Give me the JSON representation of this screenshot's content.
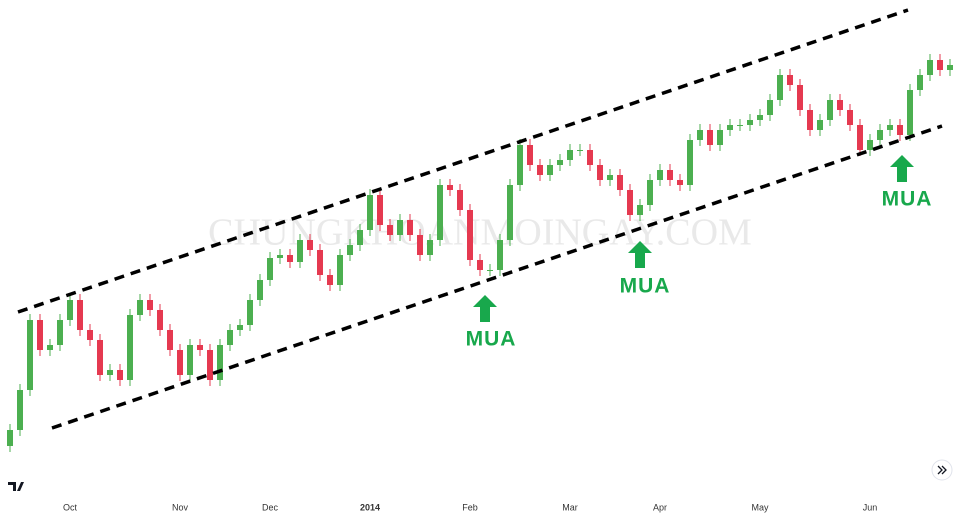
{
  "chart_data": {
    "type": "candlestick",
    "watermark": "CHUNGKHOANMOINGAY.COM",
    "annotations": [
      "MUA",
      "MUA",
      "MUA"
    ],
    "up_color": "#4caf50",
    "down_color": "#e53950",
    "ylim": [
      0,
      516
    ],
    "categories": [
      null,
      null,
      null,
      null,
      null,
      null,
      "Oct",
      null,
      null,
      null,
      null,
      null,
      null,
      null,
      null,
      null,
      null,
      "Nov",
      null,
      null,
      null,
      null,
      null,
      null,
      null,
      null,
      "Dec",
      null,
      null,
      null,
      null,
      null,
      null,
      null,
      null,
      null,
      "2014",
      null,
      null,
      null,
      null,
      null,
      null,
      null,
      null,
      null,
      "Feb",
      null,
      null,
      null,
      null,
      null,
      null,
      null,
      null,
      null,
      "Mar",
      null,
      null,
      null,
      null,
      null,
      null,
      null,
      null,
      "Apr",
      null,
      null,
      null,
      null,
      null,
      null,
      null,
      null,
      null,
      "May",
      null,
      null,
      null,
      null,
      null,
      null,
      null,
      null,
      null,
      null,
      "Jun",
      null,
      null,
      null,
      null,
      null,
      null,
      null,
      null
    ],
    "open": [
      70,
      86,
      126,
      196,
      166,
      171,
      196,
      216,
      186,
      176,
      141,
      146,
      136,
      201,
      216,
      206,
      186,
      166,
      141,
      171,
      166,
      136,
      171,
      186,
      191,
      216,
      236,
      258,
      261,
      254,
      276,
      266,
      241,
      231,
      261,
      271,
      286,
      321,
      291,
      281,
      296,
      281,
      261,
      276,
      331,
      326,
      306,
      256,
      246,
      246,
      276,
      331,
      371,
      351,
      341,
      351,
      356,
      366,
      366,
      351,
      336,
      341,
      326,
      301,
      311,
      336,
      346,
      336,
      331,
      376,
      386,
      371,
      386,
      391,
      391,
      396,
      401,
      416,
      441,
      431,
      406,
      386,
      396,
      416,
      406,
      391,
      366,
      376,
      386,
      391,
      381,
      426,
      441,
      456,
      446
    ],
    "close": [
      86,
      126,
      196,
      166,
      171,
      196,
      216,
      186,
      176,
      141,
      146,
      136,
      201,
      216,
      206,
      186,
      166,
      141,
      171,
      166,
      136,
      171,
      186,
      191,
      216,
      236,
      258,
      261,
      254,
      276,
      266,
      241,
      231,
      261,
      271,
      286,
      321,
      291,
      281,
      296,
      281,
      261,
      276,
      331,
      326,
      306,
      256,
      246,
      246,
      276,
      331,
      371,
      351,
      341,
      351,
      356,
      366,
      366,
      351,
      336,
      341,
      326,
      301,
      311,
      336,
      346,
      336,
      331,
      376,
      386,
      371,
      386,
      391,
      391,
      396,
      401,
      416,
      441,
      431,
      406,
      386,
      396,
      416,
      406,
      391,
      366,
      376,
      386,
      391,
      381,
      426,
      441,
      456,
      446,
      451
    ],
    "high": [
      92,
      132,
      202,
      202,
      177,
      202,
      222,
      222,
      192,
      182,
      152,
      152,
      207,
      222,
      222,
      212,
      192,
      172,
      177,
      177,
      172,
      177,
      192,
      197,
      222,
      242,
      264,
      267,
      267,
      282,
      282,
      272,
      247,
      267,
      277,
      292,
      327,
      327,
      297,
      302,
      302,
      287,
      282,
      337,
      337,
      332,
      312,
      262,
      252,
      282,
      337,
      377,
      377,
      357,
      357,
      362,
      372,
      372,
      372,
      357,
      347,
      347,
      332,
      317,
      342,
      352,
      352,
      342,
      382,
      392,
      392,
      392,
      397,
      397,
      402,
      407,
      422,
      447,
      447,
      437,
      412,
      402,
      422,
      422,
      412,
      397,
      382,
      392,
      397,
      397,
      432,
      447,
      462,
      462,
      457
    ],
    "low": [
      64,
      80,
      120,
      160,
      160,
      165,
      190,
      180,
      170,
      135,
      135,
      130,
      130,
      195,
      200,
      180,
      160,
      135,
      135,
      160,
      130,
      130,
      165,
      180,
      185,
      210,
      230,
      252,
      248,
      248,
      260,
      235,
      225,
      225,
      255,
      265,
      280,
      285,
      275,
      275,
      275,
      255,
      255,
      270,
      320,
      300,
      250,
      240,
      240,
      240,
      270,
      325,
      345,
      335,
      335,
      345,
      350,
      360,
      345,
      330,
      330,
      320,
      295,
      295,
      305,
      330,
      330,
      325,
      325,
      370,
      365,
      365,
      380,
      385,
      385,
      390,
      395,
      410,
      425,
      400,
      380,
      380,
      390,
      400,
      385,
      360,
      360,
      370,
      380,
      375,
      375,
      420,
      435,
      440,
      440
    ]
  }
}
